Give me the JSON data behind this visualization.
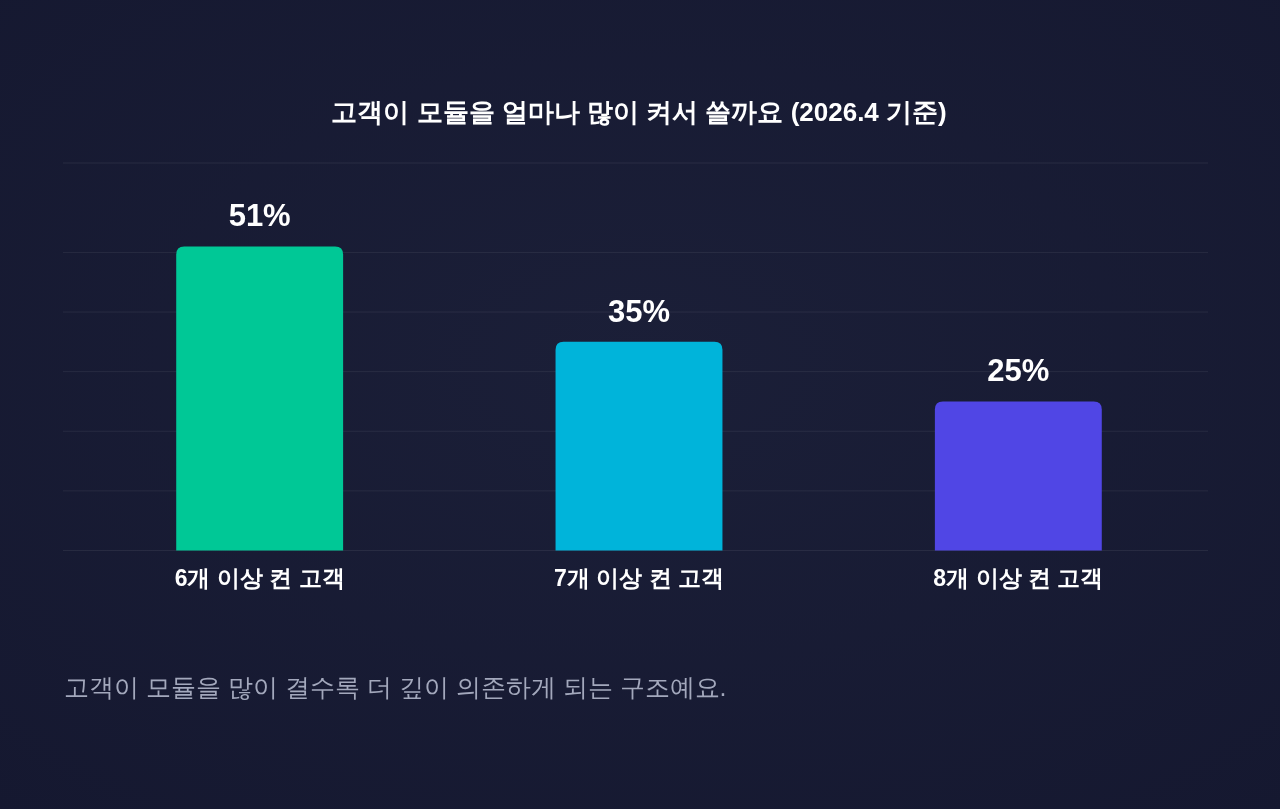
{
  "chart_data": {
    "type": "bar",
    "title": "고객이 모듈을 얼마나 많이 켜서 쓸까요 (2026.4 기준)",
    "categories": [
      "6개 이상 켠 고객",
      "7개 이상 켠 고객",
      "8개 이상 켠 고객"
    ],
    "values": [
      51,
      35,
      25
    ],
    "value_labels": [
      "51%",
      "35%",
      "25%"
    ],
    "colors": [
      "#00c896",
      "#00b4da",
      "#5046e5"
    ],
    "ylim": [
      0,
      65
    ],
    "yticks": [
      {
        "value": 0,
        "label": null
      },
      {
        "value": 10,
        "label": null
      },
      {
        "value": 20,
        "label": null
      },
      {
        "value": 30,
        "label": null
      },
      {
        "value": 40,
        "label": null
      },
      {
        "value": 50,
        "label": null
      },
      {
        "value": 65,
        "label": null
      }
    ],
    "grid": "y",
    "tick_labels": "x",
    "annotations": [
      "고객이 모듈을 많이 결수록 더 깊이 의존하게 되는 구조예요."
    ]
  }
}
